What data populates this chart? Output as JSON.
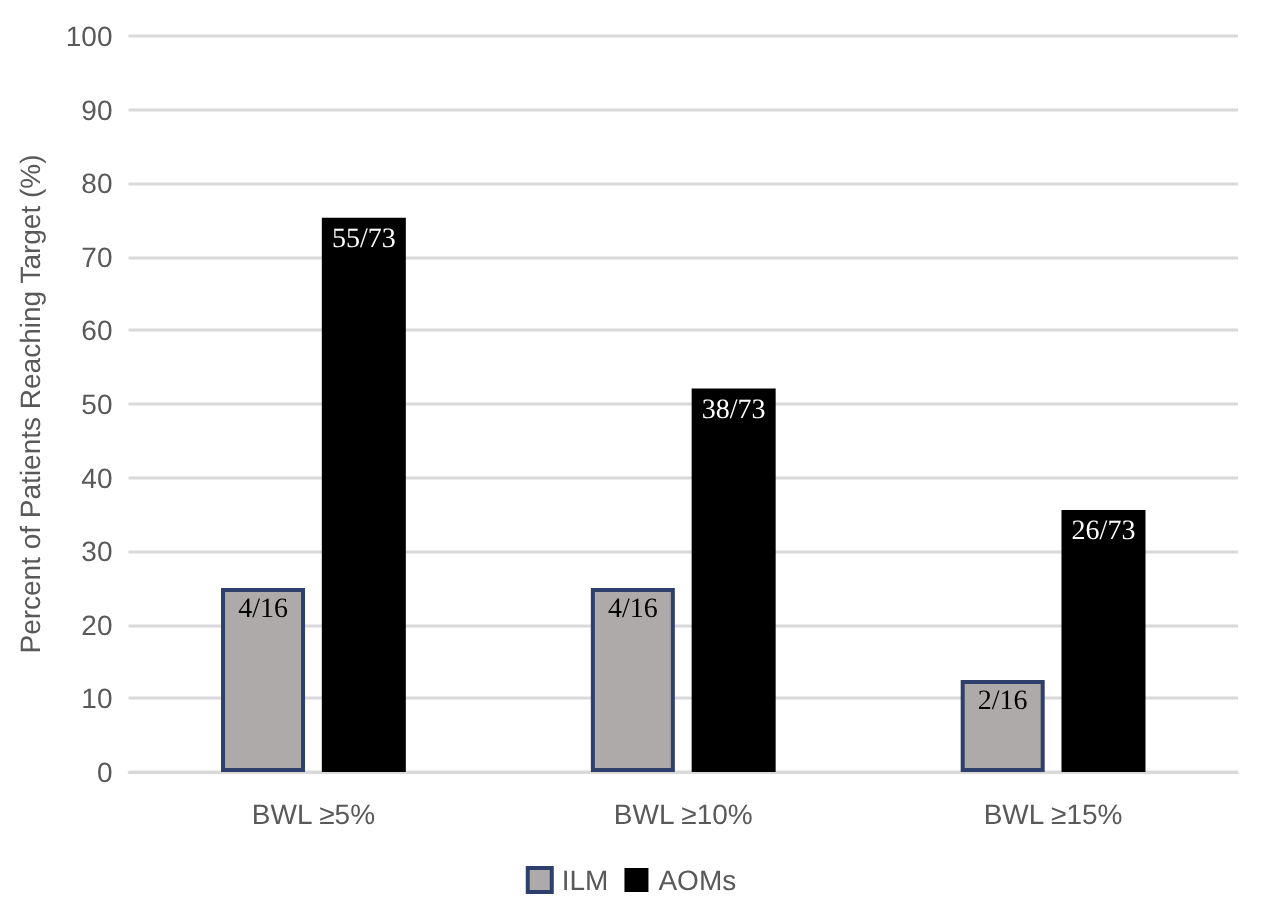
{
  "chart_data": {
    "type": "bar",
    "ylabel": "Percent of Patients Reaching Target (%)",
    "categories": [
      "BWL ≥5%",
      "BWL ≥10%",
      "BWL ≥15%"
    ],
    "series": [
      {
        "name": "ILM",
        "color": "#aeaaaa",
        "values": [
          25,
          25,
          12.5
        ]
      },
      {
        "name": "AOMs",
        "color": "#000000",
        "values": [
          75.3,
          52.1,
          35.6
        ]
      }
    ],
    "annotations": [
      {
        "text": "4/16",
        "x": "BWL ≥5%",
        "y": 25
      },
      {
        "text": "55/73",
        "x": "BWL ≥5%",
        "y": 75.3
      },
      {
        "text": "4/16",
        "x": "BWL ≥10%",
        "y": 25
      },
      {
        "text": "38/73",
        "x": "BWL ≥10%",
        "y": 52.1
      },
      {
        "text": "2/16",
        "x": "BWL ≥15%",
        "y": 12.5
      },
      {
        "text": "26/73",
        "x": "BWL ≥15%",
        "y": 35.6
      }
    ],
    "ylim": [
      0,
      100
    ],
    "yticks": [
      0,
      10,
      20,
      30,
      40,
      50,
      60,
      70,
      80,
      90,
      100
    ],
    "grid": "y",
    "legend": "bottom"
  }
}
